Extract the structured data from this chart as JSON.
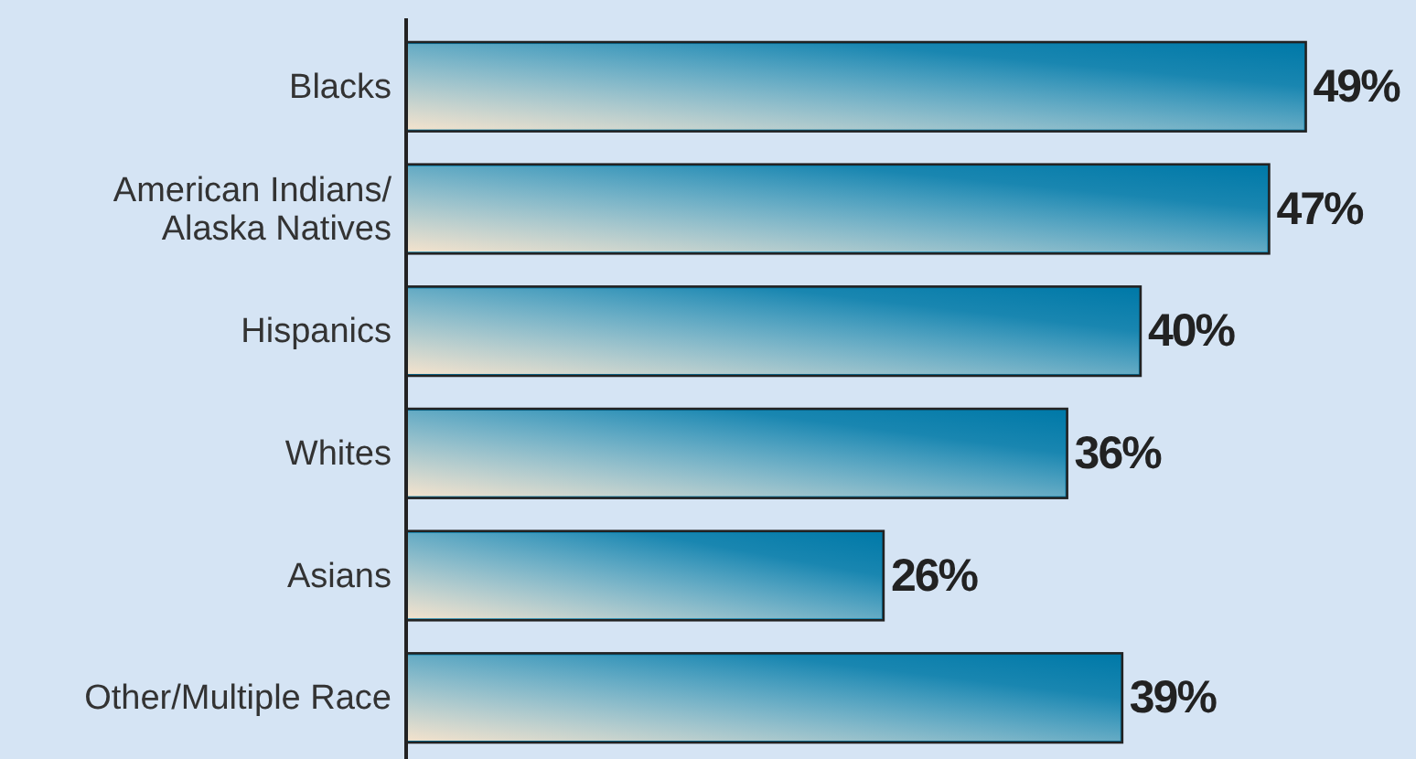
{
  "chart_data": {
    "type": "bar",
    "orientation": "horizontal",
    "categories": [
      "Blacks",
      "American Indians/\nAlaska Natives",
      "Hispanics",
      "Whites",
      "Asians",
      "Other/Multiple Race"
    ],
    "values": [
      49,
      47,
      40,
      36,
      26,
      39
    ],
    "value_labels": [
      "49%",
      "47%",
      "40%",
      "36%",
      "26%",
      "39%"
    ],
    "color": "#0079a8",
    "xlim": [
      0,
      55
    ],
    "tick_labels": "y"
  }
}
